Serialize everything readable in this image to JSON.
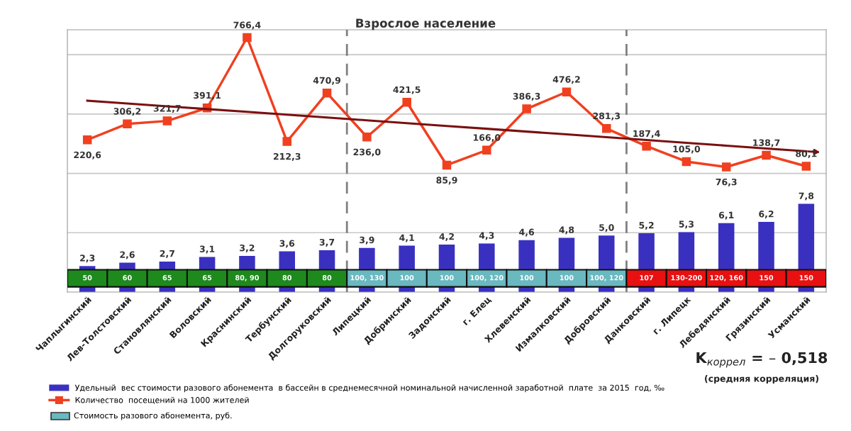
{
  "chart_data": {
    "type": "bar",
    "title": "Взрослое население",
    "categories": [
      "Чаплыгинский",
      "Лев-Толстовский",
      "Становлянский",
      "Воловский",
      "Краснинский",
      "Тербунский",
      "Долгоруковский",
      "Липецкий",
      "Добринский",
      "Задонский",
      "г. Елец",
      "Хлевенский",
      "Измалковский",
      "Добровский",
      "Данковский",
      "г. Липецк",
      "Лебедянский",
      "Грязинский",
      "Усманский"
    ],
    "series": [
      {
        "name": "Удельный  вес стоимости разового абонемента  в бассейн в среднемесячной номинальной начисленной заработной  плате  за 2015  год, ‰",
        "color": "#3a30c0",
        "values": [
          2.3,
          2.6,
          2.7,
          3.1,
          3.2,
          3.6,
          3.7,
          3.9,
          4.1,
          4.2,
          4.3,
          4.6,
          4.8,
          5.0,
          5.2,
          5.3,
          6.1,
          6.2,
          7.8
        ],
        "value_labels": [
          "2,3",
          "2,6",
          "2,7",
          "3,1",
          "3,2",
          "3,6",
          "3,7",
          "3,9",
          "4,1",
          "4,2",
          "4,3",
          "4,6",
          "4,8",
          "5,0",
          "5,2",
          "5,3",
          "6,1",
          "6,2",
          "7,8"
        ]
      },
      {
        "type": "line",
        "axis": "y2",
        "marker": "square",
        "name": "Количество  посещений на 1000 жителей",
        "color": "#f04020",
        "values": [
          220.6,
          306.2,
          321.7,
          391.1,
          766.4,
          212.3,
          470.9,
          236.0,
          421.5,
          85.9,
          166.0,
          386.3,
          476.2,
          281.3,
          187.4,
          105.0,
          76.3,
          138.7,
          80.1
        ],
        "value_labels": [
          "220,6",
          "306,2",
          "321,7",
          "391,1",
          "766,4",
          "212,3",
          "470,9",
          "236,0",
          "421,5",
          "85,9",
          "166,0",
          "386,3",
          "476,2",
          "281,3",
          "187,4",
          "105,0",
          "76,3",
          "138,7",
          "80,1"
        ]
      },
      {
        "type": "line",
        "axis": "y2",
        "marker": "none",
        "color": "#7a1010",
        "values": [
          430,
          415,
          400,
          385,
          370,
          355,
          340,
          325,
          310,
          295,
          280,
          265,
          250,
          235,
          220,
          205,
          190,
          175,
          160
        ],
        "value_labels": [
          null,
          null,
          null,
          null,
          null,
          null,
          null,
          null,
          null,
          null,
          null,
          null,
          null,
          null,
          null,
          null,
          null,
          null,
          null
        ]
      }
    ],
    "data_labels": true,
    "ylim": [
      0,
      23.2
    ],
    "yticks": [
      {
        "value": 5.25,
        "label": null
      },
      {
        "value": 10.5,
        "label": null
      },
      {
        "value": 15.75,
        "label": null
      },
      {
        "value": 21,
        "label": null
      }
    ],
    "y2lim": [
      -591,
      808
    ],
    "tick_labels": "x",
    "grid": "y",
    "legend": "bottom left",
    "annotations": [
      "50",
      "60",
      "65",
      "65",
      "80, 90",
      "80",
      "80",
      "100, 130",
      "100",
      "100",
      "100, 120",
      "100",
      "100",
      "100, 120",
      "107",
      "130-200",
      "120, 160",
      "150",
      "150",
      "Стоимость разового абонемента, руб.",
      "K$_{коррел}$ = – 0,518",
      "(средняя корреляция)"
    ]
  }
}
